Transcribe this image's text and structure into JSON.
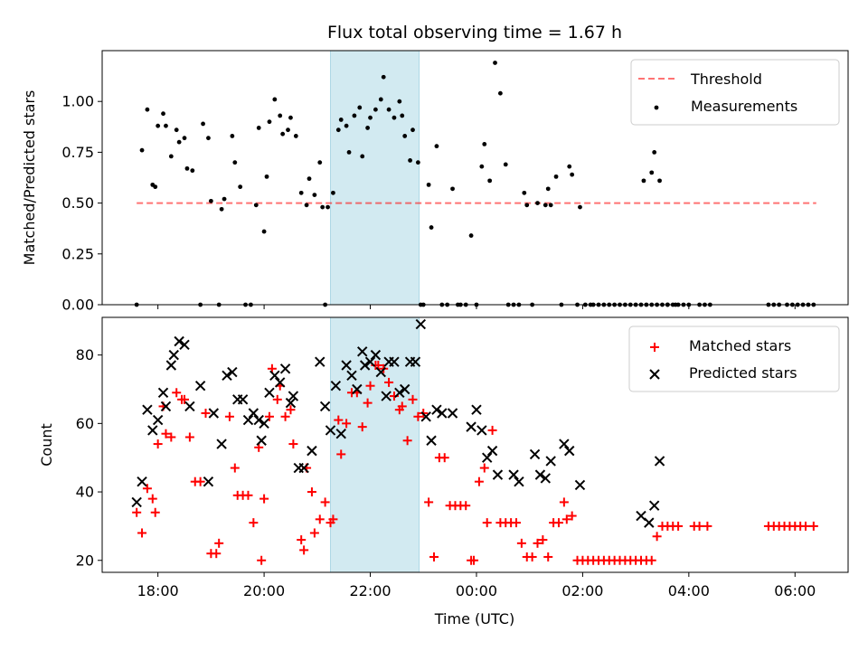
{
  "figure": {
    "title": "Flux total observing time = 1.67 h",
    "xlabel": "Time (UTC)",
    "xticks": [
      {
        "t": 18,
        "label": "18:00"
      },
      {
        "t": 20,
        "label": "20:00"
      },
      {
        "t": 22,
        "label": "22:00"
      },
      {
        "t": 24,
        "label": "00:00"
      },
      {
        "t": 26,
        "label": "02:00"
      },
      {
        "t": 28,
        "label": "04:00"
      },
      {
        "t": 30,
        "label": "06:00"
      }
    ],
    "xlim": [
      16.95,
      31.0
    ],
    "highlight_span": [
      21.25,
      22.92
    ],
    "colors": {
      "span": "#add8e6",
      "threshold": "#ff0000",
      "matched": "#ff0000",
      "predicted": "#000000",
      "measurements": "#000000"
    }
  },
  "chart_data": [
    {
      "type": "scatter",
      "ylabel": "Matched/Predicted stars",
      "ylim": [
        0,
        1.25
      ],
      "yticks": [
        {
          "v": 0,
          "label": "0.00"
        },
        {
          "v": 0.25,
          "label": "0.25"
        },
        {
          "v": 0.5,
          "label": "0.50"
        },
        {
          "v": 0.75,
          "label": "0.75"
        },
        {
          "v": 1.0,
          "label": "1.00"
        }
      ],
      "legend": {
        "position": "upper right",
        "threshold_label": "Threshold",
        "measurements_label": "Measurements"
      },
      "threshold": {
        "y": 0.5,
        "x_range": [
          17.6,
          30.4
        ]
      },
      "measurements": [
        [
          17.6,
          0.0
        ],
        [
          17.7,
          0.76
        ],
        [
          17.8,
          0.96
        ],
        [
          17.9,
          0.59
        ],
        [
          17.95,
          0.58
        ],
        [
          18.0,
          0.88
        ],
        [
          18.1,
          0.94
        ],
        [
          18.15,
          0.88
        ],
        [
          18.25,
          0.73
        ],
        [
          18.35,
          0.86
        ],
        [
          18.4,
          0.8
        ],
        [
          18.5,
          0.82
        ],
        [
          18.55,
          0.67
        ],
        [
          18.65,
          0.66
        ],
        [
          18.8,
          0.0
        ],
        [
          18.85,
          0.89
        ],
        [
          18.95,
          0.82
        ],
        [
          19.0,
          0.51
        ],
        [
          19.15,
          0.0
        ],
        [
          19.2,
          0.47
        ],
        [
          19.25,
          0.52
        ],
        [
          19.4,
          0.83
        ],
        [
          19.45,
          0.7
        ],
        [
          19.55,
          0.58
        ],
        [
          19.65,
          0.0
        ],
        [
          19.75,
          0.0
        ],
        [
          19.85,
          0.49
        ],
        [
          19.9,
          0.87
        ],
        [
          20.0,
          0.36
        ],
        [
          20.05,
          0.63
        ],
        [
          20.1,
          0.9
        ],
        [
          20.2,
          1.01
        ],
        [
          20.3,
          0.93
        ],
        [
          20.35,
          0.84
        ],
        [
          20.45,
          0.86
        ],
        [
          20.5,
          0.92
        ],
        [
          20.6,
          0.83
        ],
        [
          20.7,
          0.55
        ],
        [
          20.8,
          0.49
        ],
        [
          20.85,
          0.62
        ],
        [
          20.95,
          0.54
        ],
        [
          21.05,
          0.7
        ],
        [
          21.1,
          0.48
        ],
        [
          21.15,
          0.0
        ],
        [
          21.2,
          0.48
        ],
        [
          21.3,
          0.55
        ],
        [
          21.4,
          0.86
        ],
        [
          21.45,
          0.91
        ],
        [
          21.55,
          0.88
        ],
        [
          21.6,
          0.75
        ],
        [
          21.7,
          0.93
        ],
        [
          21.8,
          0.97
        ],
        [
          21.85,
          0.73
        ],
        [
          21.95,
          0.87
        ],
        [
          22.0,
          0.92
        ],
        [
          22.1,
          0.96
        ],
        [
          22.2,
          1.01
        ],
        [
          22.25,
          1.12
        ],
        [
          22.35,
          0.96
        ],
        [
          22.45,
          0.92
        ],
        [
          22.55,
          1.0
        ],
        [
          22.6,
          0.93
        ],
        [
          22.65,
          0.83
        ],
        [
          22.75,
          0.71
        ],
        [
          22.8,
          0.86
        ],
        [
          22.9,
          0.7
        ],
        [
          22.95,
          0.0
        ],
        [
          23.0,
          0.0
        ],
        [
          23.1,
          0.59
        ],
        [
          23.15,
          0.38
        ],
        [
          23.25,
          0.78
        ],
        [
          23.35,
          0.0
        ],
        [
          23.45,
          0.0
        ],
        [
          23.55,
          0.57
        ],
        [
          23.65,
          0.0
        ],
        [
          23.7,
          0.0
        ],
        [
          23.8,
          0.0
        ],
        [
          23.9,
          0.34
        ],
        [
          24.0,
          0.0
        ],
        [
          24.1,
          0.68
        ],
        [
          24.15,
          0.79
        ],
        [
          24.25,
          0.61
        ],
        [
          24.35,
          1.19
        ],
        [
          24.45,
          1.04
        ],
        [
          24.55,
          0.69
        ],
        [
          24.6,
          0.0
        ],
        [
          24.7,
          0.0
        ],
        [
          24.8,
          0.0
        ],
        [
          24.9,
          0.55
        ],
        [
          24.95,
          0.49
        ],
        [
          25.05,
          0.0
        ],
        [
          25.15,
          0.5
        ],
        [
          25.3,
          0.49
        ],
        [
          25.35,
          0.57
        ],
        [
          25.4,
          0.49
        ],
        [
          25.5,
          0.63
        ],
        [
          25.6,
          0.0
        ],
        [
          25.75,
          0.68
        ],
        [
          25.8,
          0.64
        ],
        [
          25.9,
          0.0
        ],
        [
          25.95,
          0.48
        ],
        [
          26.05,
          0.0
        ],
        [
          26.15,
          0.0
        ],
        [
          26.2,
          0.0
        ],
        [
          26.3,
          0.0
        ],
        [
          26.4,
          0.0
        ],
        [
          26.5,
          0.0
        ],
        [
          26.6,
          0.0
        ],
        [
          26.7,
          0.0
        ],
        [
          26.8,
          0.0
        ],
        [
          26.9,
          0.0
        ],
        [
          27.0,
          0.0
        ],
        [
          27.1,
          0.0
        ],
        [
          27.2,
          0.0
        ],
        [
          27.3,
          0.0
        ],
        [
          27.4,
          0.0
        ],
        [
          27.5,
          0.0
        ],
        [
          27.6,
          0.0
        ],
        [
          27.7,
          0.0
        ],
        [
          27.8,
          0.0
        ],
        [
          27.9,
          0.0
        ],
        [
          28.0,
          0.0
        ],
        [
          27.15,
          0.61
        ],
        [
          27.3,
          0.65
        ],
        [
          27.35,
          0.75
        ],
        [
          27.45,
          0.61
        ],
        [
          27.6,
          0.0
        ],
        [
          27.75,
          0.0
        ],
        [
          28.2,
          0.0
        ],
        [
          28.3,
          0.0
        ],
        [
          28.4,
          0.0
        ],
        [
          29.5,
          0.0
        ],
        [
          29.6,
          0.0
        ],
        [
          29.7,
          0.0
        ],
        [
          29.85,
          0.0
        ],
        [
          29.95,
          0.0
        ],
        [
          30.05,
          0.0
        ],
        [
          30.15,
          0.0
        ],
        [
          30.25,
          0.0
        ],
        [
          30.35,
          0.0
        ]
      ]
    },
    {
      "type": "scatter",
      "ylabel": "Count",
      "ylim": [
        16.5,
        91
      ],
      "yticks": [
        {
          "v": 20,
          "label": "20"
        },
        {
          "v": 40,
          "label": "40"
        },
        {
          "v": 60,
          "label": "60"
        },
        {
          "v": 80,
          "label": "80"
        }
      ],
      "legend": {
        "position": "upper right",
        "matched_label": "Matched stars",
        "predicted_label": "Predicted stars"
      },
      "matched": [
        [
          17.6,
          34
        ],
        [
          17.7,
          28
        ],
        [
          17.8,
          41
        ],
        [
          17.9,
          38
        ],
        [
          17.95,
          34
        ],
        [
          18.0,
          54
        ],
        [
          18.1,
          65
        ],
        [
          18.15,
          57
        ],
        [
          18.25,
          56
        ],
        [
          18.35,
          69
        ],
        [
          18.45,
          67
        ],
        [
          18.5,
          67
        ],
        [
          18.6,
          56
        ],
        [
          18.7,
          43
        ],
        [
          18.8,
          43
        ],
        [
          18.9,
          63
        ],
        [
          19.0,
          22
        ],
        [
          19.1,
          22
        ],
        [
          19.15,
          25
        ],
        [
          19.35,
          62
        ],
        [
          19.45,
          47
        ],
        [
          19.5,
          39
        ],
        [
          19.6,
          39
        ],
        [
          19.7,
          39
        ],
        [
          19.8,
          31
        ],
        [
          19.9,
          53
        ],
        [
          19.95,
          20
        ],
        [
          20.0,
          38
        ],
        [
          20.1,
          62
        ],
        [
          20.15,
          76
        ],
        [
          20.25,
          67
        ],
        [
          20.3,
          71
        ],
        [
          20.4,
          62
        ],
        [
          20.5,
          64
        ],
        [
          20.55,
          54
        ],
        [
          20.7,
          26
        ],
        [
          20.75,
          23
        ],
        [
          20.8,
          47
        ],
        [
          20.9,
          40
        ],
        [
          20.95,
          28
        ],
        [
          21.05,
          32
        ],
        [
          21.15,
          37
        ],
        [
          21.25,
          31
        ],
        [
          21.3,
          32
        ],
        [
          21.4,
          61
        ],
        [
          21.45,
          51
        ],
        [
          21.55,
          60
        ],
        [
          21.65,
          69
        ],
        [
          21.75,
          69
        ],
        [
          21.85,
          59
        ],
        [
          21.95,
          66
        ],
        [
          22.0,
          71
        ],
        [
          22.1,
          77
        ],
        [
          22.15,
          77
        ],
        [
          22.25,
          76
        ],
        [
          22.35,
          72
        ],
        [
          22.45,
          68
        ],
        [
          22.55,
          64
        ],
        [
          22.6,
          65
        ],
        [
          22.7,
          55
        ],
        [
          22.8,
          67
        ],
        [
          22.9,
          62
        ],
        [
          23.0,
          63
        ],
        [
          23.1,
          37
        ],
        [
          23.2,
          21
        ],
        [
          23.3,
          50
        ],
        [
          23.4,
          50
        ],
        [
          23.5,
          36
        ],
        [
          23.6,
          36
        ],
        [
          23.7,
          36
        ],
        [
          23.8,
          36
        ],
        [
          23.9,
          20
        ],
        [
          23.95,
          20
        ],
        [
          24.05,
          43
        ],
        [
          24.15,
          47
        ],
        [
          24.2,
          31
        ],
        [
          24.3,
          58
        ],
        [
          24.45,
          31
        ],
        [
          24.55,
          31
        ],
        [
          24.65,
          31
        ],
        [
          24.75,
          31
        ],
        [
          24.85,
          25
        ],
        [
          24.95,
          21
        ],
        [
          25.05,
          21
        ],
        [
          25.15,
          25
        ],
        [
          25.25,
          26
        ],
        [
          25.35,
          21
        ],
        [
          25.45,
          31
        ],
        [
          25.55,
          31
        ],
        [
          25.65,
          37
        ],
        [
          25.7,
          32
        ],
        [
          25.8,
          33
        ],
        [
          25.9,
          20
        ],
        [
          26.0,
          20
        ],
        [
          26.1,
          20
        ],
        [
          26.2,
          20
        ],
        [
          26.3,
          20
        ],
        [
          26.4,
          20
        ],
        [
          26.5,
          20
        ],
        [
          26.6,
          20
        ],
        [
          26.7,
          20
        ],
        [
          26.8,
          20
        ],
        [
          26.9,
          20
        ],
        [
          27.0,
          20
        ],
        [
          27.1,
          20
        ],
        [
          27.2,
          20
        ],
        [
          27.3,
          20
        ],
        [
          27.4,
          27
        ],
        [
          27.5,
          30
        ],
        [
          27.6,
          30
        ],
        [
          27.7,
          30
        ],
        [
          27.8,
          30
        ],
        [
          28.1,
          30
        ],
        [
          28.2,
          30
        ],
        [
          28.35,
          30
        ],
        [
          29.5,
          30
        ],
        [
          29.6,
          30
        ],
        [
          29.7,
          30
        ],
        [
          29.8,
          30
        ],
        [
          29.9,
          30
        ],
        [
          30.0,
          30
        ],
        [
          30.1,
          30
        ],
        [
          30.2,
          30
        ],
        [
          30.35,
          30
        ]
      ],
      "predicted": [
        [
          17.6,
          37
        ],
        [
          17.7,
          43
        ],
        [
          17.8,
          64
        ],
        [
          17.9,
          58
        ],
        [
          18.0,
          61
        ],
        [
          18.1,
          69
        ],
        [
          18.15,
          65
        ],
        [
          18.25,
          77
        ],
        [
          18.3,
          80
        ],
        [
          18.4,
          84
        ],
        [
          18.5,
          83
        ],
        [
          18.6,
          65
        ],
        [
          18.8,
          71
        ],
        [
          18.95,
          43
        ],
        [
          19.05,
          63
        ],
        [
          19.2,
          54
        ],
        [
          19.3,
          74
        ],
        [
          19.4,
          75
        ],
        [
          19.5,
          67
        ],
        [
          19.6,
          67
        ],
        [
          19.7,
          61
        ],
        [
          19.8,
          63
        ],
        [
          19.9,
          61
        ],
        [
          19.95,
          55
        ],
        [
          20.0,
          60
        ],
        [
          20.1,
          69
        ],
        [
          20.2,
          74
        ],
        [
          20.3,
          72
        ],
        [
          20.4,
          76
        ],
        [
          20.5,
          66
        ],
        [
          20.55,
          68
        ],
        [
          20.65,
          47
        ],
        [
          20.75,
          47
        ],
        [
          20.9,
          52
        ],
        [
          21.05,
          78
        ],
        [
          21.15,
          65
        ],
        [
          21.25,
          58
        ],
        [
          21.35,
          71
        ],
        [
          21.45,
          57
        ],
        [
          21.55,
          77
        ],
        [
          21.65,
          74
        ],
        [
          21.75,
          70
        ],
        [
          21.85,
          81
        ],
        [
          21.9,
          77
        ],
        [
          22.0,
          78
        ],
        [
          22.1,
          80
        ],
        [
          22.2,
          75
        ],
        [
          22.3,
          68
        ],
        [
          22.35,
          78
        ],
        [
          22.45,
          78
        ],
        [
          22.55,
          69
        ],
        [
          22.65,
          70
        ],
        [
          22.75,
          78
        ],
        [
          22.85,
          78
        ],
        [
          22.95,
          89
        ],
        [
          23.05,
          62
        ],
        [
          23.15,
          55
        ],
        [
          23.25,
          64
        ],
        [
          23.35,
          63
        ],
        [
          23.55,
          63
        ],
        [
          23.9,
          59
        ],
        [
          24.0,
          64
        ],
        [
          24.1,
          58
        ],
        [
          24.2,
          50
        ],
        [
          24.3,
          52
        ],
        [
          24.4,
          45
        ],
        [
          24.7,
          45
        ],
        [
          24.8,
          43
        ],
        [
          25.1,
          51
        ],
        [
          25.2,
          45
        ],
        [
          25.3,
          44
        ],
        [
          25.4,
          49
        ],
        [
          25.65,
          54
        ],
        [
          25.75,
          52
        ],
        [
          25.95,
          42
        ],
        [
          27.1,
          33
        ],
        [
          27.25,
          31
        ],
        [
          27.35,
          36
        ],
        [
          27.45,
          49
        ]
      ]
    }
  ]
}
